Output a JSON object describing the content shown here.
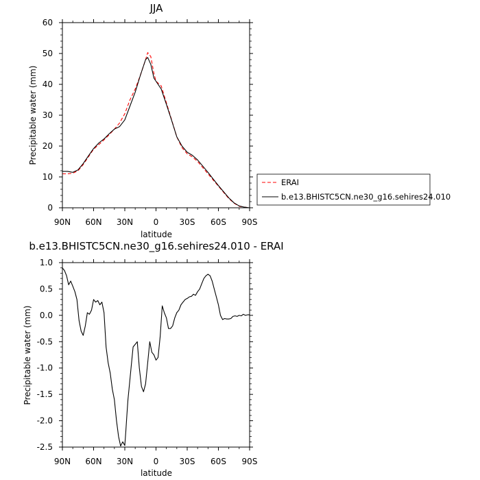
{
  "chart_data": [
    {
      "type": "line",
      "title": "JJA",
      "xlabel": "latitude",
      "ylabel": "Precipitable water (mm)",
      "xlim": [
        90,
        -90
      ],
      "ylim": [
        0,
        60
      ],
      "xticks": [
        90,
        60,
        30,
        0,
        -30,
        -60,
        -90
      ],
      "xticklabels": [
        "90N",
        "60N",
        "30N",
        "0",
        "30S",
        "60S",
        "90S"
      ],
      "yticks": [
        0,
        10,
        20,
        30,
        40,
        50,
        60
      ],
      "yticklabels": [
        "0",
        "10",
        "20",
        "30",
        "40",
        "50",
        "60"
      ],
      "grid": false,
      "legend_position": "right-outside",
      "series": [
        {
          "name": "ERAI",
          "color": "#ff0000",
          "dash": "dashed",
          "x": [
            90,
            85,
            80,
            75,
            70,
            65,
            60,
            55,
            50,
            45,
            40,
            35,
            30,
            25,
            20,
            15,
            10,
            8,
            5,
            2,
            0,
            -5,
            -10,
            -15,
            -20,
            -25,
            -30,
            -35,
            -40,
            -45,
            -50,
            -55,
            -60,
            -65,
            -70,
            -75,
            -80,
            -85,
            -90
          ],
          "y": [
            11,
            11,
            11.2,
            12,
            14,
            16.5,
            19,
            20.5,
            22,
            23.7,
            25.5,
            27.5,
            30.5,
            35,
            38.5,
            43,
            48,
            50.3,
            49,
            43.5,
            41,
            39.5,
            34,
            28.5,
            23,
            19.5,
            17.5,
            16.5,
            15,
            13,
            11,
            9,
            7,
            5,
            3,
            1.5,
            0.5,
            0.2,
            0
          ]
        },
        {
          "name": "b.e13.BHISTC5CN.ne30_g16.sehires24.010",
          "color": "#000000",
          "dash": "solid",
          "x": [
            90,
            85,
            80,
            75,
            70,
            65,
            60,
            55,
            50,
            45,
            40,
            35,
            30,
            25,
            20,
            15,
            10,
            8,
            5,
            2,
            0,
            -5,
            -10,
            -15,
            -20,
            -25,
            -30,
            -35,
            -40,
            -45,
            -50,
            -55,
            -60,
            -65,
            -70,
            -75,
            -80,
            -85,
            -90
          ],
          "y": [
            11.8,
            11.8,
            11.5,
            12.3,
            14.3,
            16.8,
            19.2,
            21,
            22.3,
            24,
            25.5,
            26.3,
            28.5,
            33,
            37.5,
            43,
            48,
            48.7,
            46.5,
            42,
            41,
            38.5,
            33.5,
            28.3,
            23,
            20,
            18,
            17,
            15.5,
            13.5,
            11.5,
            9.3,
            7.2,
            5.2,
            3.2,
            1.6,
            0.6,
            0.2,
            0
          ]
        }
      ]
    },
    {
      "type": "line",
      "title": "b.e13.BHISTC5CN.ne30_g16.sehires24.010 - ERAI",
      "xlabel": "latitude",
      "ylabel": "Precipitable water (mm)",
      "xlim": [
        90,
        -90
      ],
      "ylim": [
        -2.5,
        1.0
      ],
      "xticks": [
        90,
        60,
        30,
        0,
        -30,
        -60,
        -90
      ],
      "xticklabels": [
        "90N",
        "60N",
        "30N",
        "0",
        "30S",
        "60S",
        "90S"
      ],
      "yticks": [
        1.0,
        0.5,
        0.0,
        -0.5,
        -1.0,
        -1.5,
        -2.0,
        -2.5
      ],
      "yticklabels": [
        "1.0",
        "0.5",
        "0.0",
        "-0.5",
        "-1.0",
        "-1.5",
        "-2.0",
        "-2.5"
      ],
      "grid": false,
      "series": [
        {
          "color": "#000000",
          "dash": "solid",
          "x": [
            90,
            88,
            86,
            84,
            82,
            80,
            78,
            76,
            74,
            72,
            70,
            68,
            66,
            64,
            62,
            60,
            58,
            56,
            54,
            52,
            50,
            48,
            46,
            44,
            42,
            40,
            38,
            36,
            34,
            32,
            30,
            29,
            28,
            27,
            26,
            24,
            22,
            20,
            18,
            16,
            14,
            12,
            10,
            8,
            6,
            4,
            2,
            0,
            -2,
            -4,
            -6,
            -8,
            -10,
            -12,
            -14,
            -16,
            -18,
            -20,
            -22,
            -24,
            -26,
            -28,
            -30,
            -32,
            -34,
            -36,
            -38,
            -40,
            -42,
            -44,
            -46,
            -48,
            -50,
            -52,
            -54,
            -56,
            -58,
            -60,
            -62,
            -64,
            -66,
            -68,
            -70,
            -72,
            -74,
            -76,
            -78,
            -80,
            -82,
            -84,
            -86,
            -88,
            -90
          ],
          "y": [
            0.9,
            0.85,
            0.75,
            0.58,
            0.65,
            0.55,
            0.45,
            0.3,
            -0.1,
            -0.3,
            -0.38,
            -0.2,
            0.05,
            0.02,
            0.1,
            0.3,
            0.25,
            0.28,
            0.2,
            0.25,
            0.05,
            -0.6,
            -0.9,
            -1.1,
            -1.4,
            -1.6,
            -2.0,
            -2.3,
            -2.48,
            -2.4,
            -2.47,
            -2.2,
            -1.9,
            -1.6,
            -1.4,
            -1.0,
            -0.6,
            -0.55,
            -0.5,
            -1.0,
            -1.35,
            -1.45,
            -1.3,
            -0.9,
            -0.5,
            -0.7,
            -0.75,
            -0.85,
            -0.8,
            -0.4,
            0.18,
            0.05,
            -0.05,
            -0.25,
            -0.25,
            -0.2,
            -0.05,
            0.05,
            0.1,
            0.2,
            0.25,
            0.3,
            0.32,
            0.35,
            0.36,
            0.4,
            0.38,
            0.45,
            0.5,
            0.6,
            0.7,
            0.75,
            0.78,
            0.75,
            0.65,
            0.5,
            0.35,
            0.2,
            0.0,
            -0.08,
            -0.06,
            -0.07,
            -0.07,
            -0.06,
            -0.02,
            -0.01,
            -0.02,
            0.0,
            -0.01,
            0.02,
            0.0,
            0.01,
            0.01
          ]
        }
      ]
    }
  ]
}
